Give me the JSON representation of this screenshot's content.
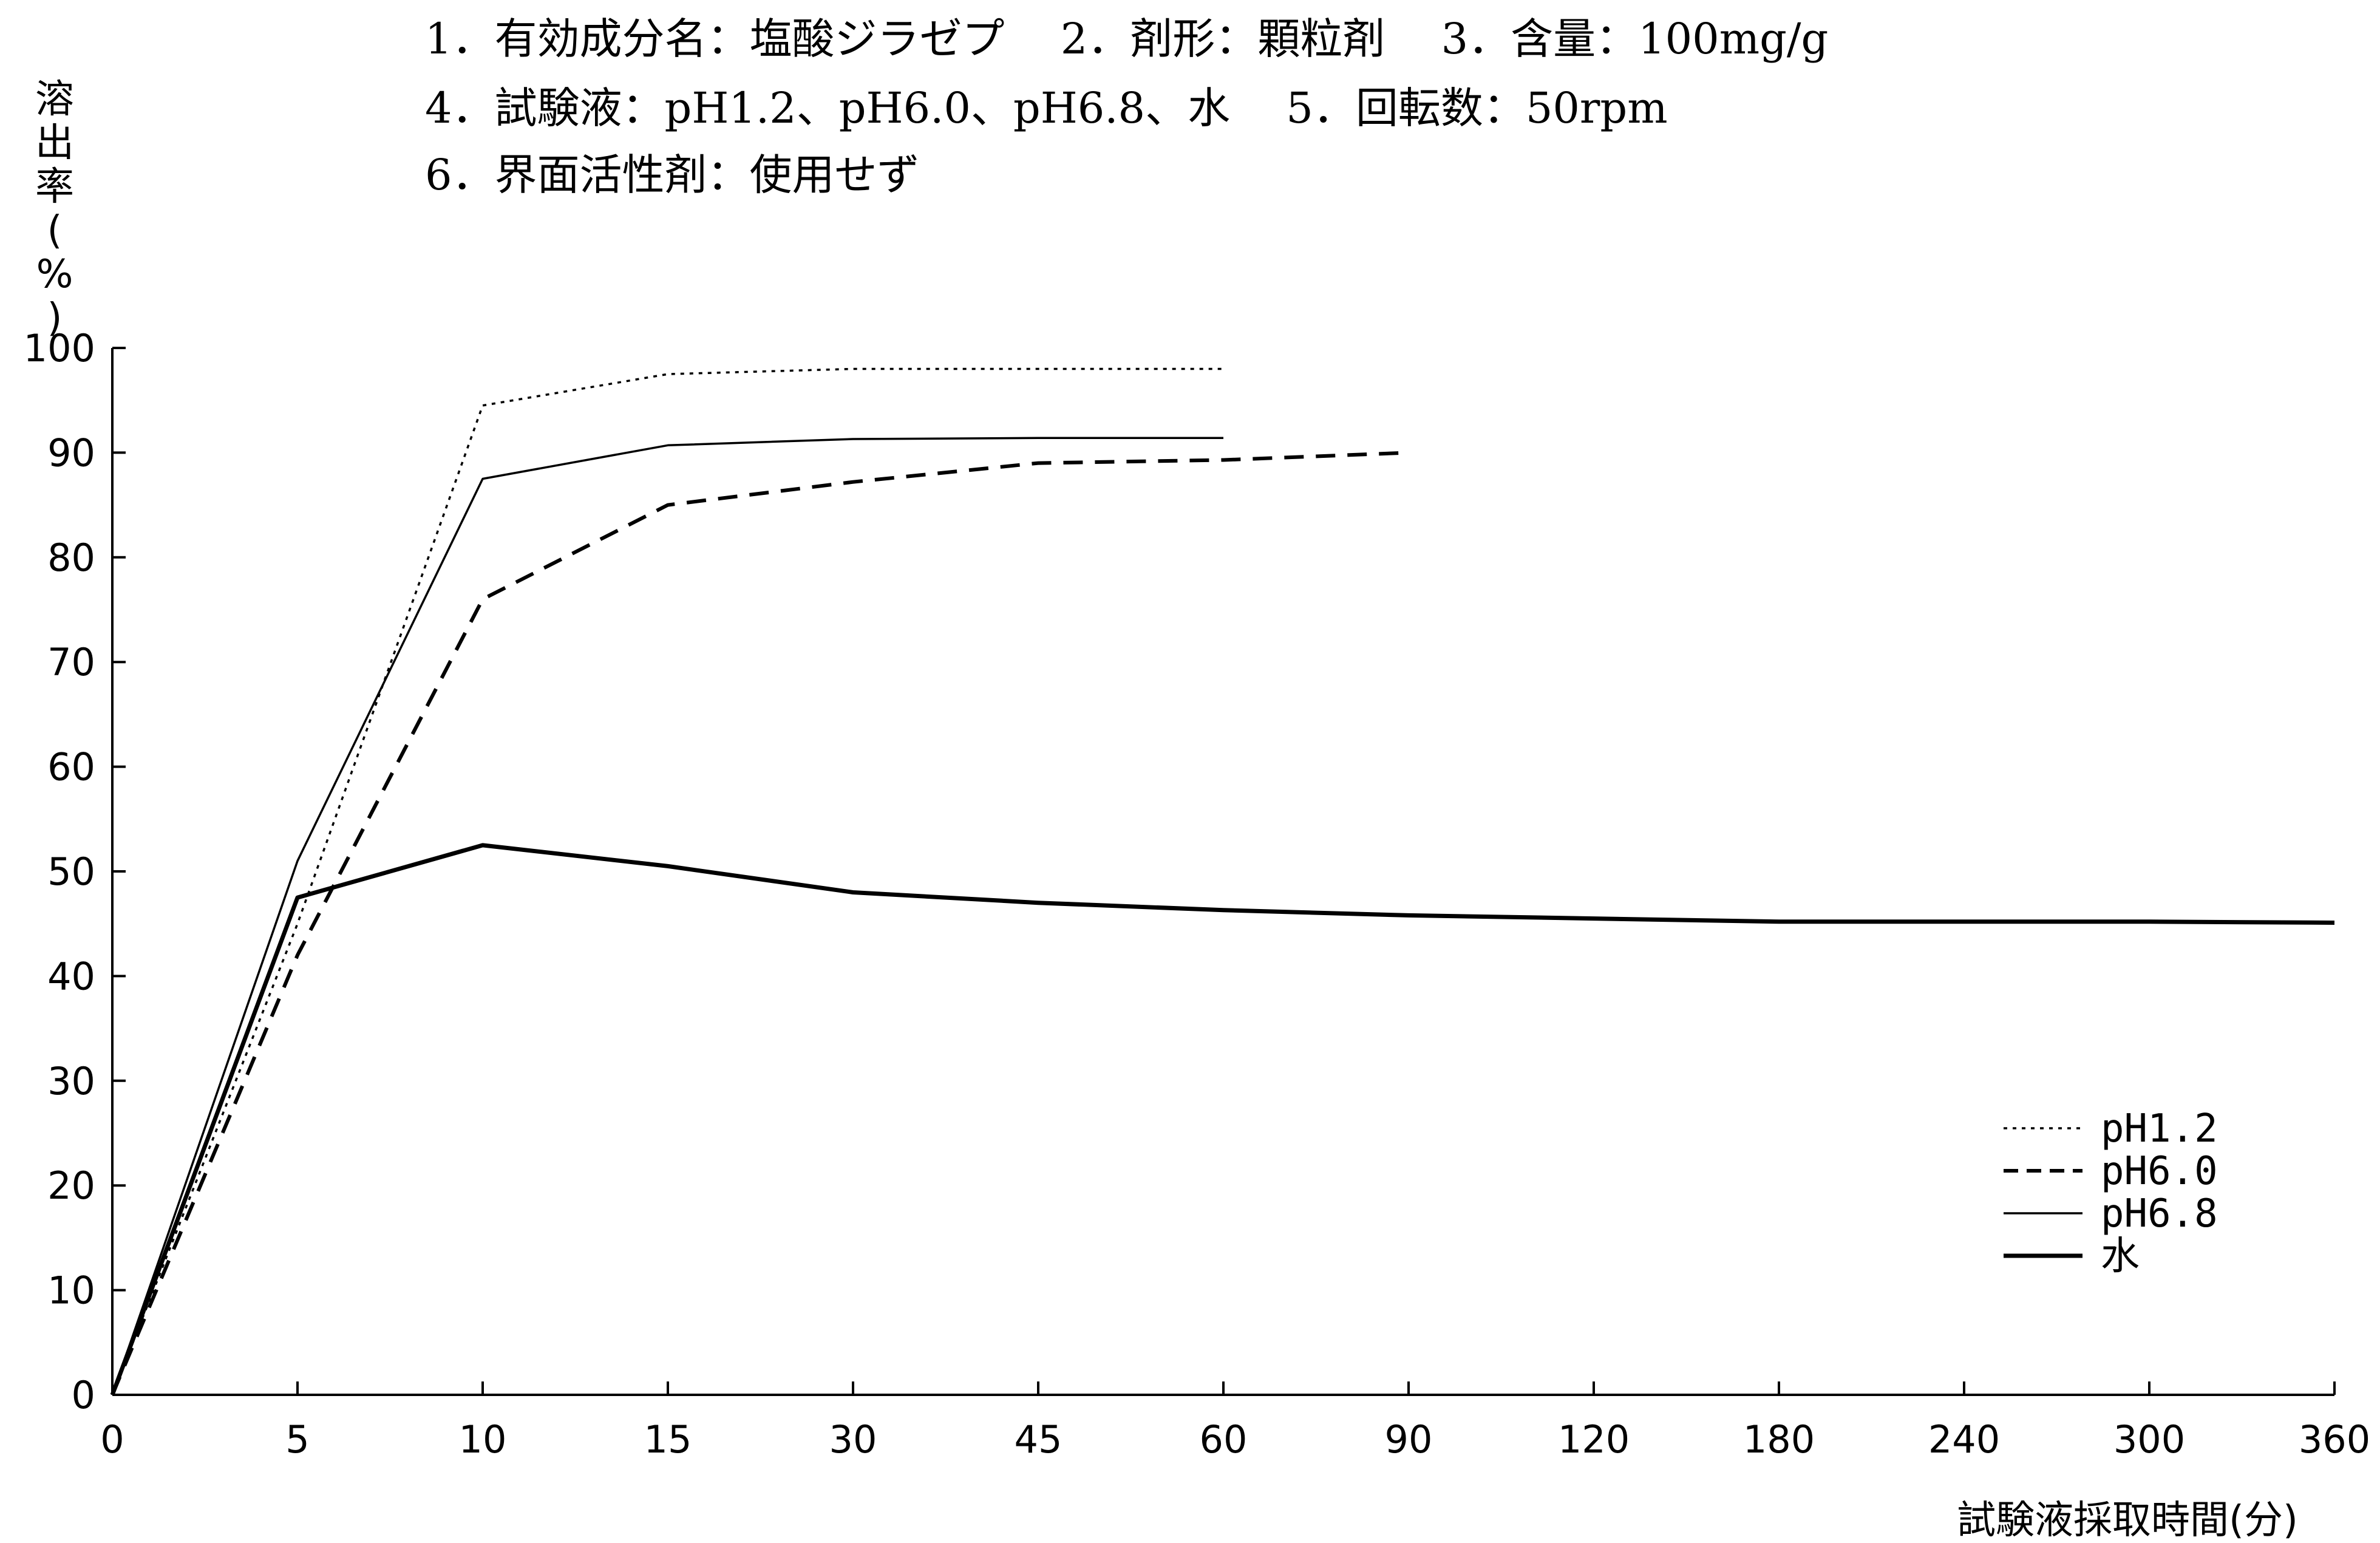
{
  "chart_data": {
    "type": "line",
    "header_lines": [
      "1．有効成分名：塩酸ジラゼプ　 2．剤形：顆粒剤　 3．含量：100mg/g",
      "4．試験液：pH1.2、pH6.0、pH6.8、水　 5．回転数：50rpm",
      "6．界面活性剤：使用せず"
    ],
    "ylabel_chars": [
      "溶",
      "出",
      "率",
      "(",
      "%",
      ")"
    ],
    "xlabel": "試験液採取時間(分)",
    "x_categories": [
      "0",
      "5",
      "10",
      "15",
      "30",
      "45",
      "60",
      "90",
      "120",
      "180",
      "240",
      "300",
      "360"
    ],
    "y_ticks": [
      "0",
      "10",
      "20",
      "30",
      "40",
      "50",
      "60",
      "70",
      "80",
      "90",
      "100"
    ],
    "ylim": [
      0,
      100
    ],
    "grid": false,
    "legend_position": "bottom-right",
    "series": [
      {
        "name": "pH1.2",
        "style": "dotted",
        "values": [
          0,
          45,
          94.5,
          97.5,
          98,
          98,
          98
        ]
      },
      {
        "name": "pH6.0",
        "style": "dashed",
        "values": [
          0,
          42,
          76,
          85,
          87.2,
          89,
          89.3,
          90
        ]
      },
      {
        "name": "pH6.8",
        "style": "thin",
        "values": [
          0,
          51,
          87.5,
          90.7,
          91.3,
          91.4,
          91.4
        ]
      },
      {
        "name": "水",
        "style": "thick",
        "values": [
          0,
          47.5,
          52.5,
          50.5,
          48,
          47,
          46.3,
          45.8,
          45.5,
          45.2,
          45.2,
          45.2,
          45.1
        ]
      }
    ]
  }
}
